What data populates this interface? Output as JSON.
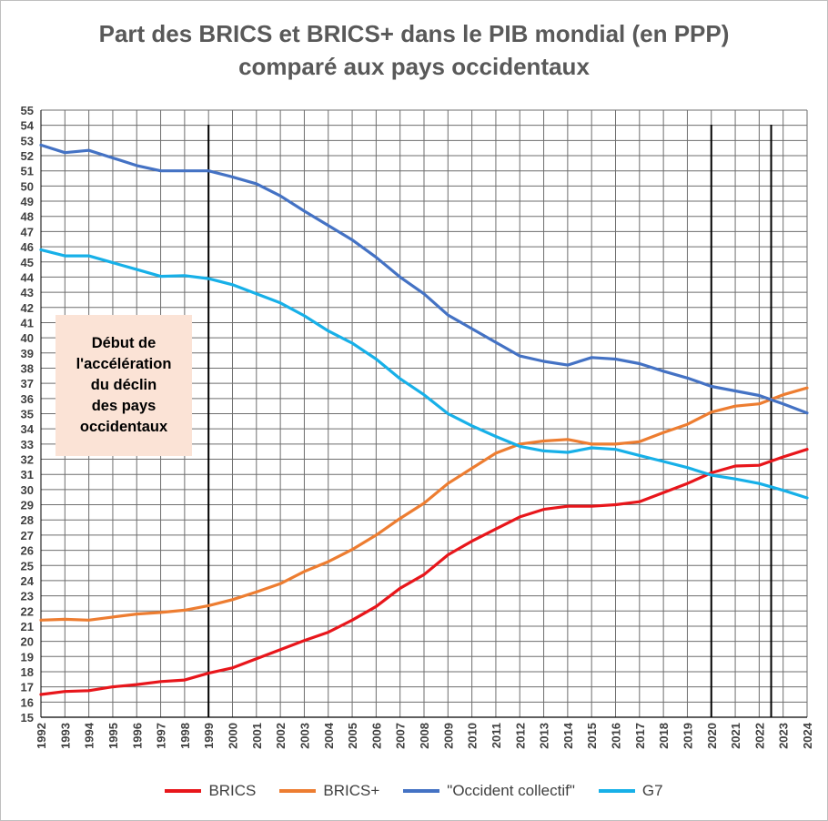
{
  "colors": {
    "BRICS": "#e8161b",
    "BRICS+": "#ed7d31",
    "Occident collectif": "#4472c4",
    "G7": "#17b0e8",
    "grid": "#6e6e6e",
    "annotation_bg": "#fbe3d6"
  },
  "chart_data": {
    "type": "line",
    "title": [
      "Part des BRICS et BRICS+ dans le PIB mondial (en PPP)",
      "comparé aux pays occidentaux"
    ],
    "xlabel": "",
    "ylabel": "",
    "x": [
      "1992",
      "1993",
      "1994",
      "1995",
      "1996",
      "1997",
      "1998",
      "1999",
      "2000",
      "2001",
      "2002",
      "2003",
      "2004",
      "2005",
      "2006",
      "2007",
      "2008",
      "2009",
      "2010",
      "2011",
      "2012",
      "2013",
      "2014",
      "2015",
      "2016",
      "2017",
      "2018",
      "2019",
      "2020",
      "2021",
      "2022",
      "2023",
      "2024"
    ],
    "ylim": [
      15,
      55
    ],
    "y_ticks": [
      "15",
      "16",
      "17",
      "18",
      "19",
      "20",
      "21",
      "22",
      "23",
      "24",
      "25",
      "26",
      "27",
      "28",
      "29",
      "30",
      "31",
      "32",
      "33",
      "34",
      "35",
      "36",
      "37",
      "38",
      "39",
      "40",
      "41",
      "42",
      "43",
      "44",
      "45",
      "46",
      "47",
      "48",
      "49",
      "50",
      "51",
      "52",
      "53",
      "54",
      "55"
    ],
    "grid": true,
    "legend_position": "bottom",
    "series": [
      {
        "name": "BRICS",
        "values": [
          16.5,
          16.7,
          16.75,
          17.0,
          17.15,
          17.35,
          17.45,
          17.9,
          18.25,
          18.85,
          19.45,
          20.05,
          20.6,
          21.4,
          22.3,
          23.5,
          24.4,
          25.7,
          26.6,
          27.4,
          28.2,
          28.7,
          28.9,
          28.9,
          29.0,
          29.2,
          29.8,
          30.4,
          31.1,
          31.55,
          31.6,
          32.15,
          32.65
        ]
      },
      {
        "name": "BRICS+",
        "values": [
          21.4,
          21.45,
          21.4,
          21.6,
          21.8,
          21.9,
          22.05,
          22.35,
          22.75,
          23.25,
          23.8,
          24.6,
          25.25,
          26.05,
          27.0,
          28.1,
          29.1,
          30.4,
          31.4,
          32.4,
          33.0,
          33.2,
          33.3,
          33.0,
          33.0,
          33.15,
          33.75,
          34.3,
          35.1,
          35.5,
          35.65,
          36.25,
          36.7
        ]
      },
      {
        "name": "\"Occident collectif\"",
        "values": [
          52.7,
          52.2,
          52.35,
          51.85,
          51.35,
          51.0,
          51.0,
          51.0,
          50.6,
          50.15,
          49.35,
          48.35,
          47.4,
          46.45,
          45.3,
          44.0,
          42.9,
          41.5,
          40.6,
          39.7,
          38.8,
          38.45,
          38.2,
          38.7,
          38.6,
          38.3,
          37.8,
          37.35,
          36.8,
          36.5,
          36.2,
          35.65,
          35.05
        ]
      },
      {
        "name": "G7",
        "values": [
          45.8,
          45.4,
          45.4,
          44.95,
          44.5,
          44.05,
          44.1,
          43.9,
          43.5,
          42.9,
          42.3,
          41.45,
          40.45,
          39.65,
          38.6,
          37.3,
          36.25,
          35.0,
          34.2,
          33.5,
          32.85,
          32.55,
          32.45,
          32.75,
          32.65,
          32.25,
          31.85,
          31.45,
          30.95,
          30.7,
          30.4,
          29.95,
          29.45
        ]
      }
    ],
    "vertical_markers": [
      "1999",
      "2020",
      "2022-2023"
    ],
    "annotation": "Début de\nl'accélération\ndu déclin\ndes pays\noccidentaux"
  }
}
